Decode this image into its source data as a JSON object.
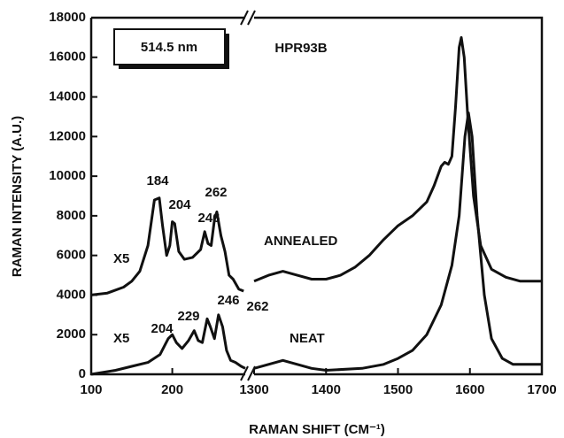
{
  "chart_data": {
    "type": "line",
    "xlabel": "RAMAN SHIFT (CM⁻¹)",
    "ylabel": "RAMAN INTENSITY (A.U.)",
    "inset_label": "514.5 nm",
    "sample": "HPR93B",
    "scale_note": "X5",
    "xlim": [
      100,
      1700
    ],
    "xbreak": [
      290,
      1300
    ],
    "xticks": [
      100,
      200,
      1300,
      1400,
      1500,
      1600,
      1700
    ],
    "ylim": [
      0,
      18000
    ],
    "yticks": [
      0,
      2000,
      4000,
      6000,
      8000,
      10000,
      12000,
      14000,
      16000,
      18000
    ],
    "series": [
      {
        "name": "ANNEALED",
        "color": "#111111",
        "labels": [
          184,
          204,
          246,
          262
        ],
        "x": [
          100,
          120,
          140,
          150,
          160,
          170,
          178,
          184,
          188,
          193,
          197,
          200,
          203,
          208,
          215,
          225,
          235,
          240,
          244,
          248,
          252,
          255,
          260,
          265,
          270,
          275,
          282,
          288,
          null,
          1300,
          1320,
          1340,
          1360,
          1380,
          1400,
          1420,
          1440,
          1460,
          1480,
          1500,
          1520,
          1540,
          1550,
          1560,
          1565,
          1570,
          1575,
          1580,
          1585,
          1588,
          1592,
          1597,
          1605,
          1615,
          1630,
          1650,
          1670,
          1700
        ],
        "values": [
          4000,
          4100,
          4400,
          4700,
          5200,
          6500,
          8800,
          8900,
          7500,
          6000,
          6500,
          7700,
          7600,
          6200,
          5800,
          5900,
          6300,
          7200,
          6600,
          6500,
          7800,
          8200,
          7000,
          6200,
          5000,
          4800,
          4300,
          4200,
          null,
          4700,
          5000,
          5200,
          5000,
          4800,
          4800,
          5000,
          5400,
          6000,
          6800,
          7500,
          8000,
          8700,
          9500,
          10500,
          10700,
          10600,
          11000,
          13500,
          16500,
          17000,
          16000,
          13000,
          9000,
          6500,
          5300,
          4900,
          4700,
          4700
        ]
      },
      {
        "name": "NEAT",
        "color": "#111111",
        "labels": [
          204,
          229,
          246,
          262
        ],
        "x": [
          100,
          130,
          150,
          170,
          185,
          195,
          200,
          205,
          212,
          220,
          227,
          232,
          237,
          243,
          247,
          252,
          257,
          262,
          267,
          272,
          278,
          285,
          290,
          null,
          1300,
          1320,
          1340,
          1360,
          1380,
          1400,
          1450,
          1480,
          1500,
          1520,
          1540,
          1560,
          1575,
          1585,
          1593,
          1598,
          1603,
          1610,
          1620,
          1630,
          1645,
          1660,
          1700
        ],
        "values": [
          0,
          200,
          400,
          600,
          1000,
          1800,
          2000,
          1600,
          1300,
          1700,
          2200,
          1700,
          1600,
          2800,
          2400,
          1800,
          3000,
          2400,
          1200,
          700,
          600,
          400,
          300,
          null,
          300,
          500,
          700,
          500,
          300,
          200,
          300,
          500,
          800,
          1200,
          2000,
          3500,
          5500,
          8000,
          12000,
          13200,
          12000,
          8000,
          4000,
          1800,
          800,
          500,
          500
        ]
      }
    ]
  }
}
